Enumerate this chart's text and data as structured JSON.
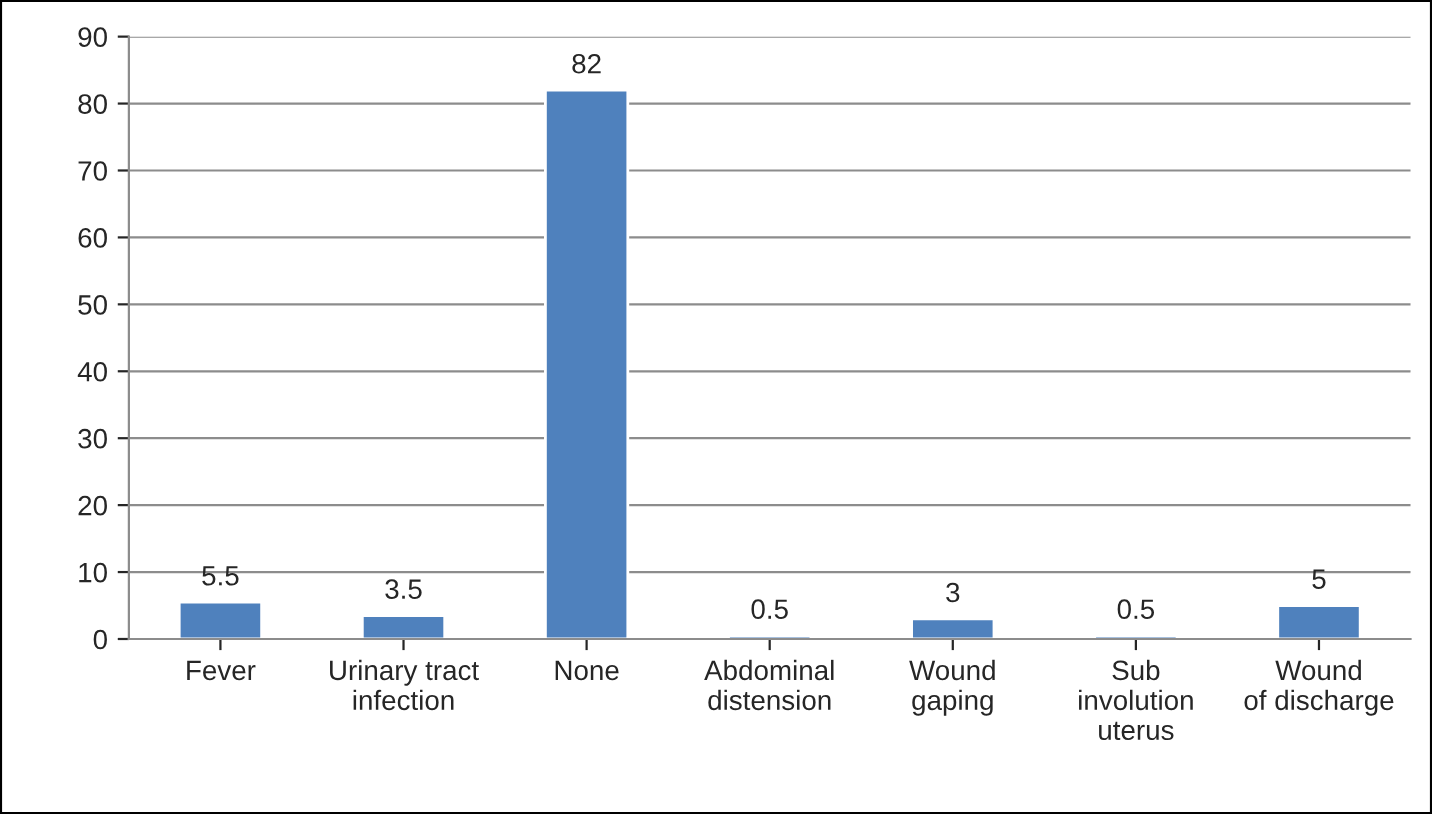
{
  "chart_data": {
    "type": "bar",
    "categories": [
      "Fever",
      "Urinary tract\ninfection",
      "None",
      "Abdominal\ndistension",
      "Wound\ngaping",
      "Sub\ninvolution\nuterus",
      "Wound\nof discharge"
    ],
    "values": [
      5.5,
      3.5,
      82,
      0.5,
      3,
      0.5,
      5
    ],
    "color": "#4f81bd",
    "ylim": [
      0,
      90
    ],
    "yticks": [
      0,
      10,
      20,
      30,
      40,
      50,
      60,
      70,
      80,
      90
    ],
    "grid": "y",
    "data_labels": true
  }
}
